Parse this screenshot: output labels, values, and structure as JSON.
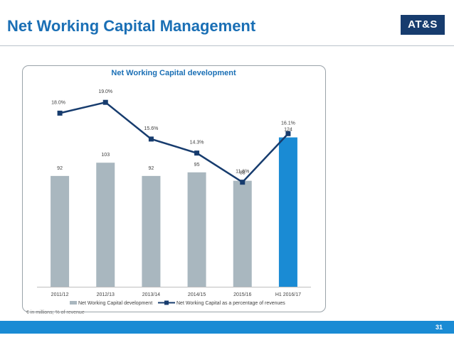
{
  "slide": {
    "title": "Net Working Capital Management",
    "logo_text": "AT&S",
    "footnote": "€ in millions; % of revenue",
    "page_number": "31"
  },
  "colors": {
    "bar": "#a9b7bf",
    "bar_highlight": "#1a8bd4",
    "line": "#173c6e",
    "title_blue": "#1a6fb5"
  },
  "chart_data": {
    "type": "bar",
    "title": "Net Working Capital development",
    "categories": [
      "2011/12",
      "2012/13",
      "2013/14",
      "2014/15",
      "2015/16",
      "H1 2016/17"
    ],
    "series": [
      {
        "name": "Net Working Capital development",
        "type": "bar",
        "values": [
          92,
          103,
          92,
          95,
          88,
          124
        ],
        "labels": [
          "92",
          "103",
          "92",
          "95",
          "88",
          "124"
        ]
      },
      {
        "name": "Net Working Capital as a percentage of revenues",
        "type": "line",
        "values": [
          18.0,
          19.0,
          15.6,
          14.3,
          11.6,
          16.1
        ],
        "labels": [
          "18.0%",
          "19.0%",
          "15.6%",
          "14.3%",
          "11.6%",
          "16.1%"
        ]
      }
    ],
    "highlight_index": 5,
    "ylim_bars": [
      0,
      140
    ],
    "ylim_line": [
      0,
      30
    ],
    "legend_position": "bottom",
    "grid": false
  }
}
